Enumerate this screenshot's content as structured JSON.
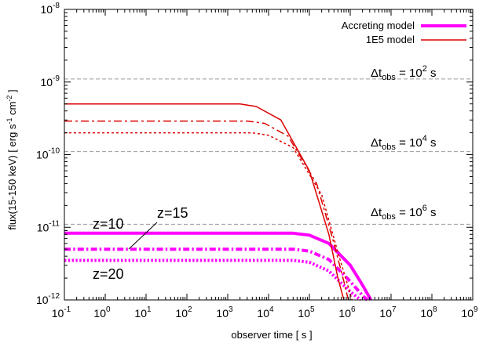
{
  "chart_data": {
    "type": "line",
    "xlabel": "observer time [ s ]",
    "ylabel": "flux(15-150 keV) [ erg s^-1 cm^-2 ]",
    "ylabel_parts": {
      "prefix": "flux(15-150 keV) [ erg s",
      "sup1": "-1",
      "middle": " cm",
      "sup2": "-2",
      "suffix": " ]"
    },
    "x_scale": "log",
    "y_scale": "log",
    "xlim": [
      0.1,
      1000000000
    ],
    "ylim": [
      1e-12,
      1e-08
    ],
    "x_ticks": [
      {
        "value": 0.1,
        "base": "10",
        "exp": "-1"
      },
      {
        "value": 1,
        "base": "10",
        "exp": "0"
      },
      {
        "value": 10,
        "base": "10",
        "exp": "1"
      },
      {
        "value": 100,
        "base": "10",
        "exp": "2"
      },
      {
        "value": 1000,
        "base": "10",
        "exp": "3"
      },
      {
        "value": 10000,
        "base": "10",
        "exp": "4"
      },
      {
        "value": 100000,
        "base": "10",
        "exp": "5"
      },
      {
        "value": 1000000,
        "base": "10",
        "exp": "6"
      },
      {
        "value": 10000000,
        "base": "10",
        "exp": "7"
      },
      {
        "value": 100000000,
        "base": "10",
        "exp": "8"
      },
      {
        "value": 1000000000,
        "base": "10",
        "exp": "9"
      }
    ],
    "y_ticks": [
      {
        "value": 1e-12,
        "base": "10",
        "exp": "-12"
      },
      {
        "value": 1e-11,
        "base": "10",
        "exp": "-11"
      },
      {
        "value": 1e-10,
        "base": "10",
        "exp": "-10"
      },
      {
        "value": 1e-09,
        "base": "10",
        "exp": "-9"
      },
      {
        "value": 1e-08,
        "base": "10",
        "exp": "-8"
      }
    ],
    "legend": {
      "placement": "top-right",
      "entries": [
        {
          "label": "Accreting model",
          "color": "#ff00ff",
          "style": "thick-solid"
        },
        {
          "label": "1E5 model",
          "color": "#dd0000",
          "style": "thin-solid"
        }
      ]
    },
    "thresholds": [
      {
        "y": 1.1e-09,
        "label_base": "Δt",
        "label_sub": "obs",
        "label_eq": " = 10",
        "label_exp": "2",
        "label_unit": " s"
      },
      {
        "y": 1.1e-10,
        "label_base": "Δt",
        "label_sub": "obs",
        "label_eq": " = 10",
        "label_exp": "4",
        "label_unit": " s"
      },
      {
        "y": 1.1e-11,
        "label_base": "Δt",
        "label_sub": "obs",
        "label_eq": " = 10",
        "label_exp": "6",
        "label_unit": " s"
      }
    ],
    "annotations": [
      {
        "text": "z=10"
      },
      {
        "text": "z=15"
      },
      {
        "text": "z=20"
      }
    ],
    "series": [
      {
        "model": "Accreting model",
        "z": "10",
        "color": "#ff00ff",
        "dash": "solid",
        "width": 4,
        "x": [
          0.1,
          40000,
          100000,
          300000,
          1000000,
          2000000,
          3200000
        ],
        "y": [
          8.3e-12,
          8.3e-12,
          7.8e-12,
          6e-12,
          3e-12,
          1.6e-12,
          1e-12
        ]
      },
      {
        "model": "Accreting model",
        "z": "15",
        "color": "#ff00ff",
        "dash": "dashdot",
        "width": 4,
        "x": [
          0.1,
          40000,
          100000,
          300000,
          1000000,
          2000000,
          2600000
        ],
        "y": [
          5e-12,
          5e-12,
          4.7e-12,
          3.6e-12,
          1.8e-12,
          1.15e-12,
          1e-12
        ]
      },
      {
        "model": "Accreting model",
        "z": "20",
        "color": "#ff00ff",
        "dash": "dotted",
        "width": 4,
        "x": [
          0.1,
          40000,
          100000,
          300000,
          1000000,
          1800000
        ],
        "y": [
          3.5e-12,
          3.5e-12,
          3.3e-12,
          2.5e-12,
          1.3e-12,
          1e-12
        ]
      },
      {
        "model": "1E5 model",
        "z": "10",
        "color": "#dd0000",
        "dash": "solid",
        "width": 1.5,
        "x": [
          0.1,
          2000,
          5000,
          20000,
          100000,
          300000,
          500000,
          700000
        ],
        "y": [
          5e-10,
          5e-10,
          4.6e-10,
          3e-10,
          6e-11,
          8e-12,
          2e-12,
          1e-12
        ]
      },
      {
        "model": "1E5 model",
        "z": "15",
        "color": "#dd0000",
        "dash": "dashdot",
        "width": 1.5,
        "x": [
          0.1,
          3000,
          8000,
          30000,
          150000,
          400000,
          700000,
          900000
        ],
        "y": [
          2.9e-10,
          2.9e-10,
          2.7e-10,
          1.8e-10,
          4e-11,
          6e-12,
          1.8e-12,
          1e-12
        ]
      },
      {
        "model": "1E5 model",
        "z": "20",
        "color": "#dd0000",
        "dash": "dotted",
        "width": 1.5,
        "x": [
          0.1,
          4000,
          10000,
          40000,
          200000,
          500000,
          900000,
          1100000
        ],
        "y": [
          2e-10,
          2e-10,
          1.85e-10,
          1.25e-10,
          2.8e-11,
          4.5e-12,
          1.5e-12,
          1e-12
        ]
      }
    ]
  }
}
